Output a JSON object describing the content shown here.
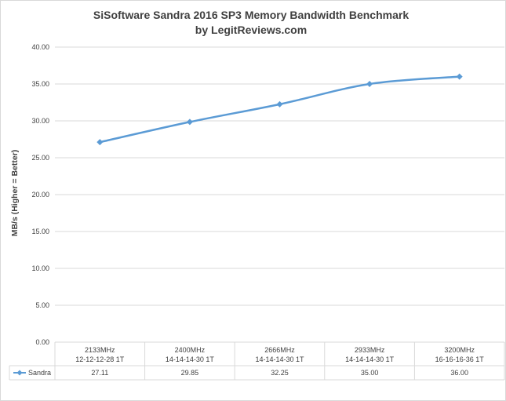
{
  "chart_data": {
    "type": "line",
    "title": "SiSoftware Sandra 2016 SP3 Memory Bandwidth Benchmark",
    "subtitle": "by LegitReviews.com",
    "ylabel": "MB/s (Higher = Better)",
    "ylim": [
      0,
      40
    ],
    "ytick_step": 5,
    "ytick_labels": [
      "0.00",
      "5.00",
      "10.00",
      "15.00",
      "20.00",
      "25.00",
      "30.00",
      "35.00",
      "40.00"
    ],
    "grid": true,
    "categories": [
      {
        "line1": "2133MHz",
        "line2": "12-12-12-28 1T"
      },
      {
        "line1": "2400MHz",
        "line2": "14-14-14-30 1T"
      },
      {
        "line1": "2666MHz",
        "line2": "14-14-14-30 1T"
      },
      {
        "line1": "2933MHz",
        "line2": "14-14-14-30 1T"
      },
      {
        "line1": "3200MHz",
        "line2": "16-16-16-36 1T"
      }
    ],
    "series": [
      {
        "name": "Sandra",
        "values": [
          27.11,
          29.85,
          32.25,
          35.0,
          36.0
        ],
        "value_labels": [
          "27.11",
          "29.85",
          "32.25",
          "35.00",
          "36.00"
        ],
        "color": "#5b9bd5"
      }
    ],
    "data_table": true,
    "legend": "data-table-left"
  }
}
